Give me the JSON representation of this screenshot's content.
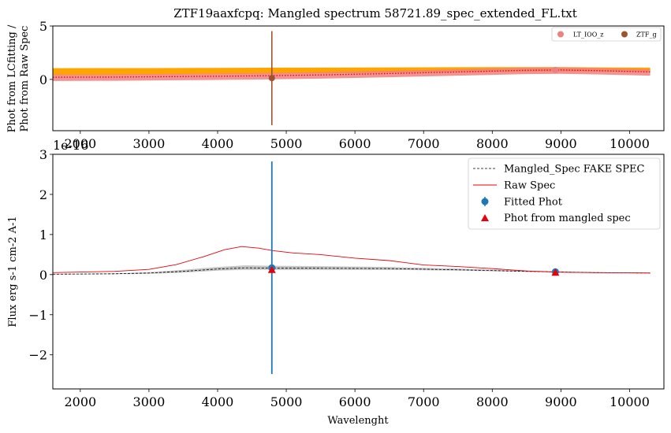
{
  "title": "ZTF19aaxfcpq: Mangled spectrum 58721.89_spec_extended_FL.txt",
  "chart_data": [
    {
      "type": "line",
      "panel": "top",
      "ylabel_line1": "Phot from LCfitting /",
      "ylabel_line2": "Phot from Raw Spec",
      "xlim": [
        1600,
        10500
      ],
      "ylim": [
        -4.8,
        5
      ],
      "xticks": [
        2000,
        3000,
        4000,
        5000,
        6000,
        7000,
        8000,
        9000,
        10000
      ],
      "xtick_labels": [
        "2000",
        "3000",
        "4000",
        "5000",
        "6000",
        "7000",
        "8000",
        "9000",
        "10000"
      ],
      "yticks": [
        0,
        5
      ],
      "ytick_labels": [
        "0",
        "5"
      ],
      "orange_band": {
        "x": [
          1600,
          3000,
          4000,
          5000,
          6000,
          7000,
          8000,
          9000,
          10300
        ],
        "low": [
          0.4,
          0.45,
          0.5,
          0.55,
          0.6,
          0.65,
          0.7,
          0.75,
          0.72
        ],
        "high": [
          1.05,
          1.06,
          1.08,
          1.1,
          1.12,
          1.13,
          1.15,
          1.15,
          1.1
        ]
      },
      "red_curve": {
        "x": [
          1600,
          2500,
          3500,
          4500,
          5500,
          6500,
          7500,
          8500,
          9000,
          9500,
          10300
        ],
        "y": [
          0.2,
          0.22,
          0.27,
          0.33,
          0.42,
          0.55,
          0.7,
          0.85,
          0.88,
          0.82,
          0.7
        ]
      },
      "series": [
        {
          "name": "LT_IOO_z",
          "color": "#f08080",
          "x": [
            8920
          ],
          "y": [
            0.88
          ]
        },
        {
          "name": "ZTF_g",
          "color": "#a0522d",
          "x": [
            4790
          ],
          "y": [
            0.12
          ],
          "yerr_low": 4.4,
          "yerr_high": 4.4
        }
      ]
    },
    {
      "type": "line",
      "panel": "bottom",
      "offset_label": "1e-16",
      "xlabel": "Wavelenght",
      "ylabel": "Flux erg s-1 cm-2 A-1",
      "xlim": [
        1600,
        10500
      ],
      "ylim": [
        -2.85,
        3.0
      ],
      "xticks": [
        2000,
        3000,
        4000,
        5000,
        6000,
        7000,
        8000,
        9000,
        10000
      ],
      "xtick_labels": [
        "2000",
        "3000",
        "4000",
        "5000",
        "6000",
        "7000",
        "8000",
        "9000",
        "10000"
      ],
      "yticks": [
        -2,
        -1,
        0,
        1,
        2,
        3
      ],
      "ytick_labels": [
        "−2",
        "−1",
        "0",
        "1",
        "2",
        "3"
      ],
      "series": [
        {
          "name": "Mangled_Spec FAKE SPEC",
          "style": "dashed",
          "color": "#000000",
          "x": [
            1600,
            2500,
            3000,
            3500,
            4000,
            4400,
            4800,
            5500,
            6500,
            7500,
            8500,
            9500,
            10300
          ],
          "y": [
            0.01,
            0.02,
            0.04,
            0.08,
            0.14,
            0.17,
            0.16,
            0.16,
            0.15,
            0.12,
            0.08,
            0.05,
            0.04
          ]
        },
        {
          "name": "Raw Spec",
          "style": "solid",
          "color": "#e8000b",
          "x": [
            1600,
            2500,
            3000,
            3400,
            3800,
            4100,
            4350,
            4600,
            4800,
            5100,
            5500,
            6000,
            6500,
            7000,
            7500,
            8000,
            8500,
            9000,
            9500,
            10300
          ],
          "y": [
            0.05,
            0.08,
            0.13,
            0.25,
            0.45,
            0.62,
            0.7,
            0.66,
            0.6,
            0.54,
            0.5,
            0.41,
            0.35,
            0.24,
            0.2,
            0.15,
            0.09,
            0.06,
            0.05,
            0.04
          ]
        },
        {
          "name": "Fitted Phot",
          "color": "#1f77b4",
          "marker": "circle",
          "x": [
            4790,
            8920
          ],
          "y": [
            0.17,
            0.07
          ],
          "yerr": [
            2.65,
            0.0
          ]
        },
        {
          "name": "Phot from mangled spec",
          "color": "#e8000b",
          "marker": "triangle",
          "x": [
            4790,
            8920
          ],
          "y": [
            0.12,
            0.05
          ]
        }
      ],
      "band": {
        "x": [
          1600,
          2500,
          3000,
          3500,
          4000,
          4400,
          4800,
          5500,
          6500,
          7500,
          8500,
          9500,
          10300
        ],
        "low": [
          0.0,
          0.01,
          0.02,
          0.05,
          0.1,
          0.12,
          0.12,
          0.12,
          0.12,
          0.1,
          0.07,
          0.04,
          0.03
        ],
        "high": [
          0.02,
          0.03,
          0.06,
          0.12,
          0.19,
          0.23,
          0.22,
          0.21,
          0.19,
          0.15,
          0.1,
          0.06,
          0.05
        ]
      },
      "legend_position": "top-right"
    }
  ]
}
